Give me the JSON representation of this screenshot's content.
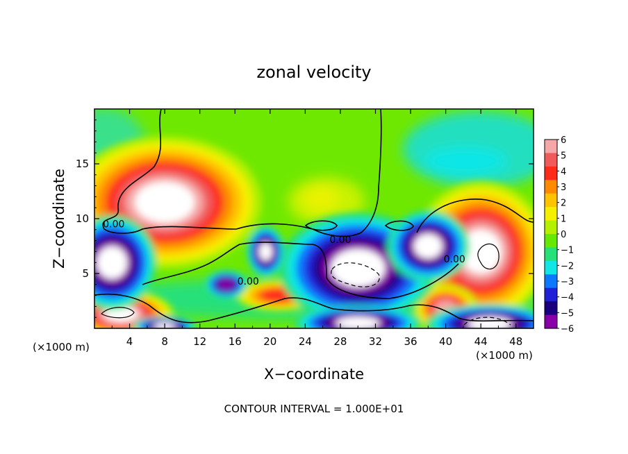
{
  "chart_data": {
    "type": "heatmap",
    "title": "zonal velocity",
    "xlabel": "X−coordinate",
    "ylabel": "Z−coordinate",
    "x_unit_left": "(×1000 m)",
    "x_unit_right": "(×1000 m)",
    "xlim": [
      0,
      50
    ],
    "ylim": [
      0,
      20
    ],
    "x_ticks": [
      4,
      8,
      12,
      16,
      20,
      24,
      28,
      32,
      36,
      40,
      44,
      48
    ],
    "y_ticks": [
      5,
      10,
      15
    ],
    "footer": "CONTOUR INTERVAL = 1.000E+01",
    "colorbar": {
      "ticks": [
        "6",
        "5",
        "4",
        "3",
        "2",
        "1",
        "0",
        "−1",
        "−2",
        "−3",
        "−4",
        "−5",
        "−6"
      ],
      "colors": [
        "#f6a7a7",
        "#f05a5a",
        "#ff2a1a",
        "#ff8a00",
        "#ffc400",
        "#f4f000",
        "#b4f000",
        "#66e800",
        "#26e07a",
        "#11e6e6",
        "#0a78ff",
        "#2020d8",
        "#1a0080",
        "#8800a8"
      ]
    },
    "contour_labels": [
      {
        "text": "0.00",
        "x": 2.2,
        "y": 9.2
      },
      {
        "text": "0.00",
        "x": 28.0,
        "y": 7.8
      },
      {
        "text": "0.00",
        "x": 17.5,
        "y": 4.0
      },
      {
        "text": "0.00",
        "x": 41.0,
        "y": 6.0
      }
    ],
    "features": [
      {
        "kind": "positive",
        "x": 8,
        "y": 11.5,
        "rx": 5.5,
        "ry": 3.0,
        "value": 6
      },
      {
        "kind": "positive",
        "x": 44,
        "y": 7,
        "rx": 3.8,
        "ry": 3.2,
        "value": 6
      },
      {
        "kind": "positive",
        "x": 3,
        "y": 1.3,
        "rx": 3,
        "ry": 1.1,
        "value": 6
      },
      {
        "kind": "positive",
        "x": 40,
        "y": 1.8,
        "rx": 2.0,
        "ry": 1.2,
        "value": 5
      },
      {
        "kind": "positive",
        "x": 21,
        "y": 3,
        "rx": 3.5,
        "ry": 1.0,
        "value": 3
      },
      {
        "kind": "negative",
        "x": 2,
        "y": 6,
        "rx": 2.8,
        "ry": 2.4,
        "value": -6
      },
      {
        "kind": "negative",
        "x": 30,
        "y": 5.5,
        "rx": 5.0,
        "ry": 2.8,
        "value": -6
      },
      {
        "kind": "negative",
        "x": 38,
        "y": 7.5,
        "rx": 2.6,
        "ry": 1.8,
        "value": -6
      },
      {
        "kind": "negative",
        "x": 19.5,
        "y": 7,
        "rx": 1.2,
        "ry": 1.3,
        "value": -5
      },
      {
        "kind": "negative",
        "x": 15,
        "y": 4,
        "rx": 1.5,
        "ry": 0.8,
        "value": -4
      },
      {
        "kind": "negative",
        "x": 30,
        "y": 0.5,
        "rx": 4.0,
        "ry": 0.9,
        "value": -6
      },
      {
        "kind": "negative",
        "x": 45,
        "y": 0.4,
        "rx": 4.0,
        "ry": 1.0,
        "value": -6
      },
      {
        "kind": "negative",
        "x": 8,
        "y": 0.2,
        "rx": 2.0,
        "ry": 0.5,
        "value": -6
      }
    ]
  }
}
